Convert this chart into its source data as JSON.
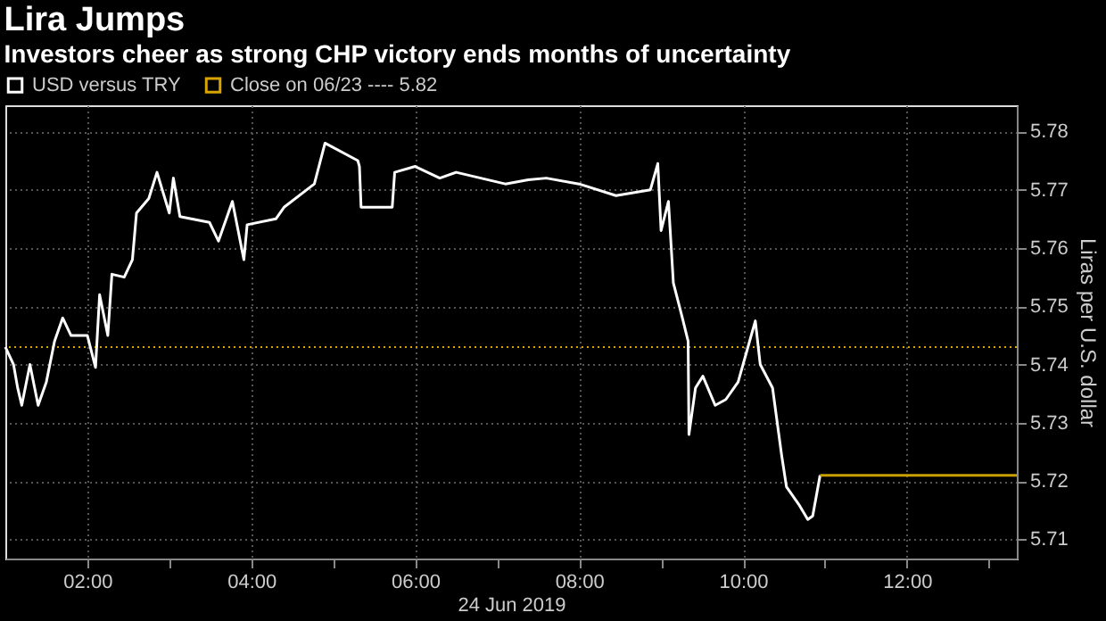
{
  "chart_data": {
    "type": "line",
    "title": "Lira Jumps",
    "subtitle": "Investors cheer as strong CHP victory ends months of uncertainty",
    "xlabel": "24 Jun 2019",
    "ylabel": "Liras per U.S. dollar",
    "series": [
      {
        "name": "USD versus TRY",
        "color": "#ffffff",
        "x": [
          1.0,
          1.1,
          1.15,
          1.2,
          1.3,
          1.4,
          1.5,
          1.6,
          1.7,
          1.8,
          2.0,
          2.1,
          2.15,
          2.25,
          2.3,
          2.45,
          2.55,
          2.6,
          2.75,
          2.85,
          3.0,
          3.05,
          3.13,
          3.49,
          3.6,
          3.77,
          3.91,
          3.95,
          4.3,
          4.4,
          4.77,
          4.9,
          5.3,
          5.32,
          5.34,
          5.72,
          5.75,
          6.0,
          6.3,
          6.5,
          6.8,
          7.1,
          7.38,
          7.6,
          8.0,
          8.45,
          8.87,
          8.96,
          9.0,
          9.09,
          9.15,
          9.26,
          9.33,
          9.34,
          9.42,
          9.51,
          9.66,
          9.79,
          9.94,
          10.04,
          10.15,
          10.21,
          10.36,
          10.47,
          10.53,
          10.68,
          10.79,
          10.85,
          10.94
        ],
        "values": [
          5.743,
          5.74,
          5.736,
          5.733,
          5.74,
          5.733,
          5.737,
          5.744,
          5.748,
          5.745,
          5.745,
          5.7395,
          5.752,
          5.745,
          5.7555,
          5.755,
          5.758,
          5.766,
          5.7685,
          5.773,
          5.766,
          5.772,
          5.7654,
          5.7644,
          5.7612,
          5.768,
          5.758,
          5.764,
          5.765,
          5.767,
          5.771,
          5.778,
          5.775,
          5.774,
          5.767,
          5.767,
          5.773,
          5.774,
          5.772,
          5.773,
          5.772,
          5.771,
          5.7717,
          5.772,
          5.771,
          5.769,
          5.77,
          5.7745,
          5.763,
          5.768,
          5.754,
          5.748,
          5.744,
          5.728,
          5.736,
          5.738,
          5.733,
          5.734,
          5.737,
          5.742,
          5.7475,
          5.74,
          5.736,
          5.7245,
          5.719,
          5.716,
          5.7134,
          5.714,
          5.721
        ]
      },
      {
        "color": "#c8a000",
        "x": [
          10.94,
          13.34
        ],
        "values": [
          5.721,
          5.721
        ]
      }
    ],
    "ref_lines": [
      {
        "axis": "y",
        "value": 5.743,
        "label": "Close on 06/23 ---- 5.82",
        "color": "#d9a400",
        "line_style": "dotted"
      }
    ],
    "xlim": [
      1.0,
      13.34
    ],
    "ylim": [
      5.7067,
      5.7845
    ],
    "xticks": [
      {
        "value": 2,
        "label": "02:00"
      },
      {
        "value": 3,
        "label": null
      },
      {
        "value": 4,
        "label": "04:00"
      },
      {
        "value": 5,
        "label": null
      },
      {
        "value": 6,
        "label": "06:00"
      },
      {
        "value": 7,
        "label": null
      },
      {
        "value": 8,
        "label": "08:00"
      },
      {
        "value": 9,
        "label": null
      },
      {
        "value": 10,
        "label": "10:00"
      },
      {
        "value": 11,
        "label": null
      },
      {
        "value": 12,
        "label": "12:00"
      },
      {
        "value": 13,
        "label": null
      }
    ],
    "yticks": [
      5.71,
      5.72,
      5.73,
      5.74,
      5.75,
      5.76,
      5.77,
      5.78
    ],
    "grid": true,
    "legend": "top left",
    "line_style": "solid",
    "marker": "none"
  }
}
